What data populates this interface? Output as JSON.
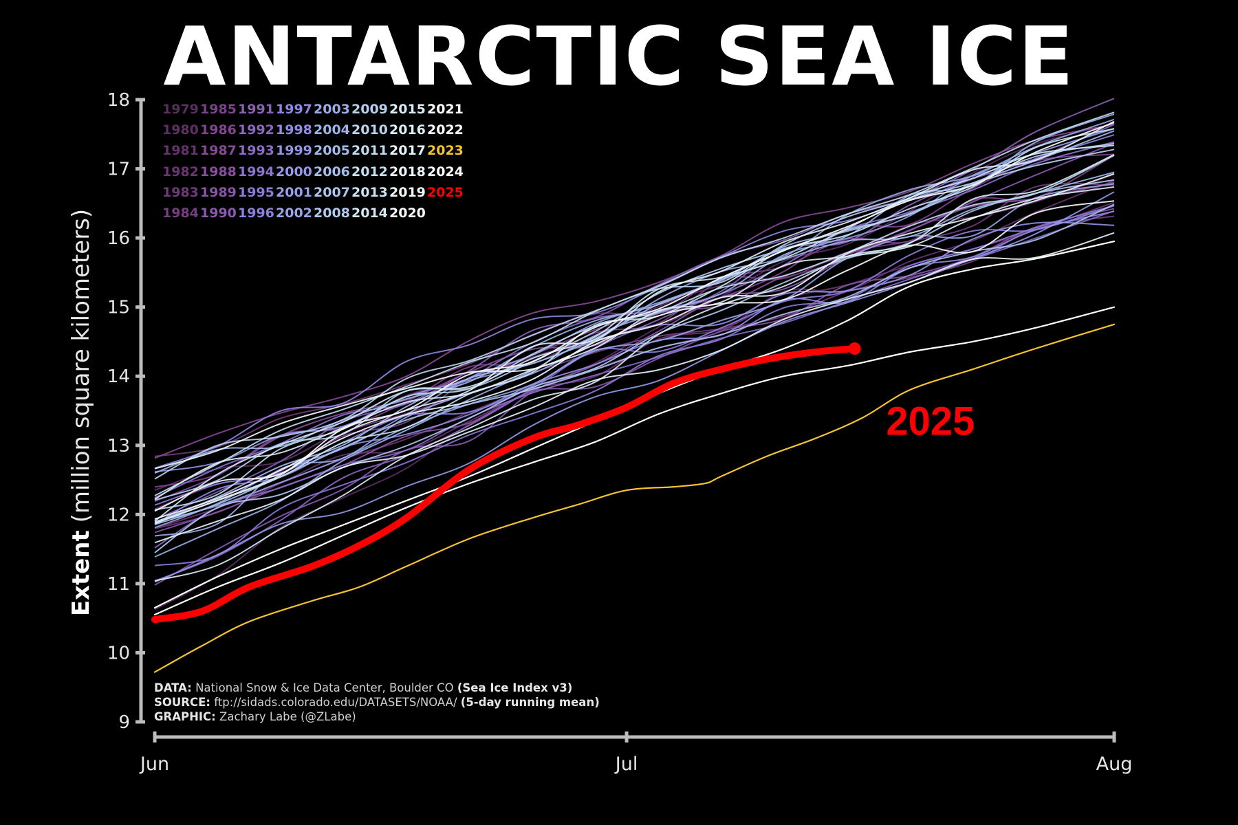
{
  "title": "ANTARCTIC SEA ICE",
  "ylabel": {
    "bold": "Extent",
    "unit": "(million square kilometers)"
  },
  "credits": [
    {
      "label": "DATA:",
      "text": "National Snow & Ice Data Center, Boulder CO",
      "extra": "(Sea Ice Index v3)"
    },
    {
      "label": "SOURCE:",
      "text": "ftp://sidads.colorado.edu/DATASETS/NOAA/",
      "extra": "(5-day running mean)"
    },
    {
      "label": "GRAPHIC:",
      "text": "Zachary Labe (@ZLabe)",
      "extra": ""
    }
  ],
  "legend_rows": [
    [
      "1979",
      "1985",
      "1991",
      "1997",
      "2003",
      "2009",
      "2015",
      "2021"
    ],
    [
      "1980",
      "1986",
      "1992",
      "1998",
      "2004",
      "2010",
      "2016",
      "2022"
    ],
    [
      "1981",
      "1987",
      "1993",
      "1999",
      "2005",
      "2011",
      "2017",
      "2023"
    ],
    [
      "1982",
      "1988",
      "1994",
      "2000",
      "2006",
      "2012",
      "2018",
      "2024"
    ],
    [
      "1983",
      "1989",
      "1995",
      "2001",
      "2007",
      "2013",
      "2019",
      "2025"
    ],
    [
      "1984",
      "1990",
      "1996",
      "2002",
      "2008",
      "2014",
      "2020"
    ]
  ],
  "colors": {
    "background": "#000000",
    "axis": "#bdbdbd",
    "highlight_2025": "#ff0000",
    "highlight_2023": "#f4c430",
    "recent_years": "#ffffff",
    "year_gradient": [
      "#5a2d5e",
      "#8a4a9a",
      "#8c7fe0",
      "#9bb4ea",
      "#c8e4f2",
      "#ffffff"
    ]
  },
  "chart_data": {
    "type": "line",
    "title": "ANTARCTIC SEA ICE",
    "xlabel": "",
    "ylabel": "Extent (million square kilometers)",
    "x_unit": "days since Jun 1",
    "xlim": [
      0,
      61
    ],
    "ylim": [
      9,
      18
    ],
    "x_ticks": [
      {
        "value": 0,
        "label": "Jun"
      },
      {
        "value": 30,
        "label": "Jul"
      },
      {
        "value": 61,
        "label": "Aug"
      }
    ],
    "y_ticks": [
      9,
      10,
      11,
      12,
      13,
      14,
      15,
      16,
      17,
      18
    ],
    "annotation": {
      "text": "2025",
      "x": 46.5,
      "y": 13.35
    },
    "background_series_range": {
      "years": "1979-2024",
      "start_range": [
        10.5,
        12.9
      ],
      "end_range": [
        16.1,
        18.0
      ]
    },
    "series": [
      {
        "name": "2025",
        "color": "#ff0000",
        "x": [
          0,
          3,
          6,
          10,
          13,
          16,
          20,
          24,
          27,
          30,
          33,
          36,
          39,
          42,
          44.5
        ],
        "y": [
          10.48,
          10.6,
          10.95,
          11.25,
          11.55,
          11.95,
          12.65,
          13.1,
          13.3,
          13.55,
          13.9,
          14.1,
          14.25,
          14.35,
          14.4
        ]
      },
      {
        "name": "2023",
        "color": "#f4c430",
        "x": [
          0,
          3,
          6,
          10,
          13,
          16,
          20,
          24,
          27,
          30,
          33,
          35,
          36,
          39,
          42,
          45,
          48,
          52,
          56,
          61
        ],
        "y": [
          9.72,
          10.1,
          10.45,
          10.75,
          10.95,
          11.25,
          11.65,
          11.95,
          12.15,
          12.35,
          12.4,
          12.45,
          12.55,
          12.85,
          13.1,
          13.4,
          13.8,
          14.1,
          14.4,
          14.75
        ]
      },
      {
        "name": "2022",
        "color": "#ffffff",
        "x": [
          0,
          4,
          8,
          12,
          16,
          20,
          24,
          28,
          32,
          36,
          40,
          44,
          48,
          52,
          56,
          61
        ],
        "y": [
          10.55,
          10.95,
          11.3,
          11.7,
          12.1,
          12.45,
          12.75,
          13.05,
          13.45,
          13.75,
          14.0,
          14.15,
          14.35,
          14.5,
          14.7,
          15.0
        ]
      },
      {
        "name": "2024",
        "color": "#ffffff",
        "x": [
          0,
          4,
          8,
          12,
          16,
          20,
          24,
          28,
          32,
          36,
          40,
          44,
          48,
          52,
          56,
          61
        ],
        "y": [
          10.65,
          11.1,
          11.5,
          11.85,
          12.2,
          12.55,
          12.95,
          13.35,
          13.75,
          14.1,
          14.4,
          14.8,
          15.3,
          15.55,
          15.7,
          15.95
        ]
      }
    ]
  }
}
